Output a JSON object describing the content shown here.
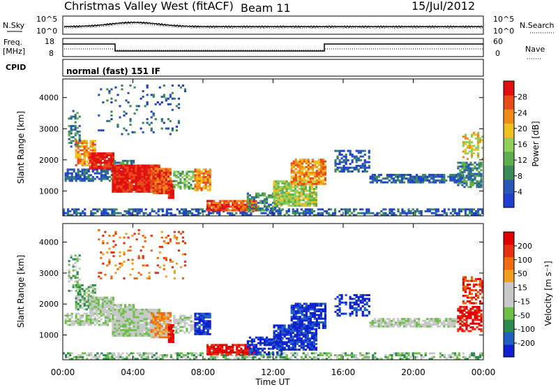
{
  "header": {
    "station": "Christmas Valley West (fitACF)",
    "beam": "Beam 11",
    "date": "15/Jul/2012"
  },
  "top_panels": {
    "nsky_label": "N.Sky",
    "nsearch_label": "N.Search",
    "noise_ticks_left": [
      "10^5",
      "10^0"
    ],
    "noise_ticks_right": [
      "10^5",
      "10^0"
    ],
    "freq_label": "Freq.",
    "freq_unit": "[MHz]",
    "freq_ticks": [
      "18",
      "8"
    ],
    "nave_label": "Nave",
    "nave_ticks": [
      "60",
      "0"
    ],
    "cpid_label": "CPID",
    "cpid_text": "normal (fast) 151 IF"
  },
  "colors": {
    "power_scale": [
      "#1f3fd0",
      "#2a58b8",
      "#3a8a5a",
      "#5fae4e",
      "#8fd05a",
      "#f0c020",
      "#f08a1a",
      "#e84a18",
      "#e01010"
    ],
    "velocity_scale": [
      "#1020d0",
      "#2060c0",
      "#2a8a50",
      "#6cc04a",
      "#c8c8c8",
      "#c8c8c8",
      "#f0a020",
      "#f06a10",
      "#e83010",
      "#e00000"
    ]
  },
  "chart_data": [
    {
      "type": "heatmap",
      "name": "power",
      "ylabel": "Slant Range [km]",
      "xlabel": "",
      "y_ticks": [
        "4000",
        "3000",
        "2000",
        "1000"
      ],
      "y_tick_values": [
        4000,
        3000,
        2000,
        1000
      ],
      "ylim": [
        200,
        4600
      ],
      "xlim": [
        0,
        24
      ],
      "colorbar_label": "Power [dB]",
      "colorbar_ticks": [
        "28",
        "24",
        "20",
        "16",
        "12",
        "8",
        "4"
      ],
      "colorbar_range": [
        0,
        32
      ]
    },
    {
      "type": "heatmap",
      "name": "velocity",
      "ylabel": "Slant Range [km]",
      "xlabel": "Time UT",
      "x_ticks": [
        "00:00",
        "04:00",
        "08:00",
        "12:00",
        "16:00",
        "20:00",
        "00:00"
      ],
      "x_tick_values": [
        0,
        4,
        8,
        12,
        16,
        20,
        24
      ],
      "y_ticks": [
        "4000",
        "3000",
        "2000",
        "1000"
      ],
      "y_tick_values": [
        4000,
        3000,
        2000,
        1000
      ],
      "ylim": [
        200,
        4600
      ],
      "xlim": [
        0,
        24
      ],
      "colorbar_label": "Velocity [m s⁻¹]",
      "colorbar_ticks": [
        "200",
        "100",
        "50",
        "15",
        "-15",
        "-50",
        "-100",
        "-200"
      ]
    }
  ]
}
